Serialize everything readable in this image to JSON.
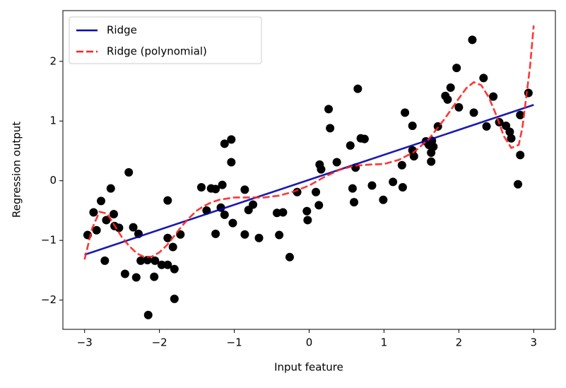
{
  "chart_data": {
    "type": "scatter",
    "xlabel": "Input feature",
    "ylabel": "Regression output",
    "xlim": [
      -3.29,
      3.29
    ],
    "ylim": [
      -2.49,
      2.85
    ],
    "xticks": [
      {
        "value": -3,
        "label": "−3"
      },
      {
        "value": -2,
        "label": "−2"
      },
      {
        "value": -1,
        "label": "−1"
      },
      0,
      1,
      2,
      3
    ],
    "yticks": [
      {
        "value": -2,
        "label": "−2"
      },
      {
        "value": -1,
        "label": "−1"
      },
      0,
      1,
      2
    ],
    "legend": "upper left",
    "lines": [
      {
        "name": "Ridge",
        "color": "#0000aa",
        "style": "solid",
        "x": [
          -3,
          3
        ],
        "y": [
          -1.24,
          1.27
        ]
      },
      {
        "name": "Ridge (polynomial)",
        "color": "#ff2020",
        "style": "dashed",
        "x": [
          -3,
          -2.9,
          -2.8,
          -2.7,
          -2.6,
          -2.5,
          -2.4,
          -2.3,
          -2.2,
          -2.1,
          -2.0,
          -1.9,
          -1.8,
          -1.7,
          -1.6,
          -1.5,
          -1.4,
          -1.3,
          -1.2,
          -1.0,
          -0.8,
          -0.6,
          -0.4,
          -0.2,
          0.0,
          0.2,
          0.4,
          0.6,
          0.8,
          1.0,
          1.2,
          1.4,
          1.6,
          1.8,
          2.0,
          2.1,
          2.2,
          2.3,
          2.4,
          2.5,
          2.6,
          2.7,
          2.8,
          2.85,
          2.9,
          2.95,
          3.0
        ],
        "y": [
          -1.32,
          -0.8,
          -0.52,
          -0.55,
          -0.75,
          -0.95,
          -1.1,
          -1.22,
          -1.28,
          -1.27,
          -1.2,
          -1.08,
          -0.92,
          -0.76,
          -0.62,
          -0.5,
          -0.42,
          -0.36,
          -0.32,
          -0.28,
          -0.28,
          -0.28,
          -0.25,
          -0.18,
          -0.08,
          0.06,
          0.18,
          0.25,
          0.27,
          0.28,
          0.35,
          0.48,
          0.7,
          1.02,
          1.38,
          1.55,
          1.65,
          1.6,
          1.4,
          1.1,
          0.75,
          0.55,
          0.6,
          0.9,
          1.4,
          1.9,
          2.6
        ]
      }
    ],
    "points": {
      "color": "#000000",
      "x": [
        -2.96,
        -2.88,
        -2.84,
        -2.78,
        -2.73,
        -2.71,
        -2.65,
        -2.61,
        -2.6,
        -2.54,
        -2.46,
        -2.41,
        -2.35,
        -2.31,
        -2.28,
        -2.25,
        -2.15,
        -2.16,
        -2.07,
        -2.06,
        -1.97,
        -1.89,
        -1.89,
        -1.89,
        -1.82,
        -1.8,
        -1.8,
        -1.72,
        -1.44,
        -1.37,
        -1.31,
        -1.25,
        -1.25,
        -1.18,
        -1.16,
        -1.13,
        -1.13,
        -1.04,
        -1.04,
        -1.02,
        -0.86,
        -0.86,
        -0.81,
        -0.75,
        -0.67,
        -0.43,
        -0.4,
        -0.35,
        -0.26,
        -0.16,
        -0.03,
        -0.02,
        0.09,
        0.13,
        0.14,
        0.16,
        0.26,
        0.28,
        0.37,
        0.55,
        0.58,
        0.6,
        0.62,
        0.65,
        0.69,
        0.74,
        0.84,
        0.99,
        1.12,
        1.24,
        1.25,
        1.28,
        1.38,
        1.38,
        1.4,
        1.56,
        1.6,
        1.63,
        1.63,
        1.64,
        1.66,
        1.72,
        1.82,
        1.85,
        1.89,
        1.97,
        2.0,
        2.18,
        2.2,
        2.33,
        2.37,
        2.46,
        2.54,
        2.63,
        2.68,
        2.7,
        2.79,
        2.82,
        2.82,
        2.93
      ],
      "y": [
        -0.91,
        -0.53,
        -0.83,
        -0.34,
        -1.34,
        -0.66,
        -0.13,
        -0.56,
        -0.76,
        -0.79,
        -1.56,
        0.14,
        -0.78,
        -1.62,
        -0.89,
        -1.34,
        -2.25,
        -1.33,
        -1.61,
        -1.34,
        -1.41,
        -0.96,
        -0.33,
        -1.41,
        -1.11,
        -1.48,
        -1.98,
        -0.9,
        -0.11,
        -0.5,
        -0.13,
        -0.14,
        -0.89,
        -0.45,
        -0.07,
        -0.57,
        0.62,
        0.69,
        0.31,
        -0.71,
        -0.9,
        -0.15,
        -0.49,
        -0.4,
        -0.96,
        -0.54,
        -0.91,
        -0.53,
        -1.28,
        -0.19,
        -0.51,
        -0.66,
        -0.19,
        -0.41,
        0.27,
        0.19,
        1.2,
        0.88,
        0.31,
        0.59,
        -0.13,
        -0.36,
        0.22,
        1.54,
        0.71,
        0.7,
        -0.08,
        -0.32,
        -0.02,
        0.26,
        -0.11,
        1.14,
        0.92,
        0.51,
        0.41,
        0.66,
        0.6,
        0.47,
        0.32,
        0.67,
        0.57,
        0.91,
        1.42,
        1.36,
        1.56,
        1.89,
        1.23,
        2.36,
        1.14,
        1.72,
        0.91,
        1.41,
        0.98,
        0.92,
        0.82,
        0.71,
        -0.06,
        1.1,
        0.43,
        1.47
      ]
    }
  }
}
